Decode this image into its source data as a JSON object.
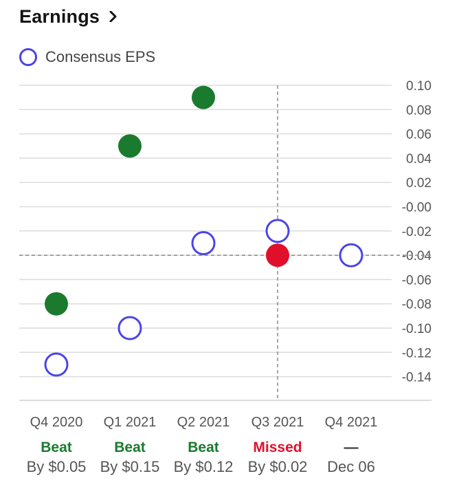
{
  "header": {
    "title": "Earnings"
  },
  "legend": {
    "label": "Consensus EPS"
  },
  "colors": {
    "beat": "#1a7a2e",
    "missed": "#e0102a",
    "consensus": "#4a44e8",
    "grid": "#dcdcdc"
  },
  "chart_data": {
    "type": "scatter",
    "title": "",
    "ylim": [
      -0.15,
      0.1
    ],
    "yticks": [
      0.1,
      0.08,
      0.06,
      0.04,
      0.02,
      -0.0,
      -0.02,
      -0.04,
      -0.06,
      -0.08,
      -0.1,
      -0.12,
      -0.14
    ],
    "ytick_labels": [
      "0.10",
      "0.08",
      "0.06",
      "0.04",
      "0.02",
      "-0.00",
      "-0.02",
      "-0.04",
      "-0.06",
      "-0.08",
      "-0.10",
      "-0.12",
      "-0.14"
    ],
    "categories": [
      "Q4 2020",
      "Q1 2021",
      "Q2 2021",
      "Q3 2021",
      "Q4 2021"
    ],
    "series": [
      {
        "name": "Consensus EPS",
        "values": [
          -0.13,
          -0.1,
          -0.03,
          -0.02,
          -0.04
        ]
      },
      {
        "values": [
          -0.08,
          0.05,
          0.09,
          -0.04,
          null
        ]
      }
    ],
    "results": [
      {
        "status": "Beat",
        "detail": "By $0.05",
        "kind": "beat"
      },
      {
        "status": "Beat",
        "detail": "By $0.15",
        "kind": "beat"
      },
      {
        "status": "Beat",
        "detail": "By $0.12",
        "kind": "beat"
      },
      {
        "status": "Missed",
        "detail": "By $0.02",
        "kind": "missed"
      },
      {
        "status": "—",
        "detail": "Dec 06",
        "kind": "pending"
      }
    ],
    "crosshair": {
      "category_index": 3,
      "value": -0.04
    },
    "grid": true,
    "legend_position": "top-left"
  }
}
